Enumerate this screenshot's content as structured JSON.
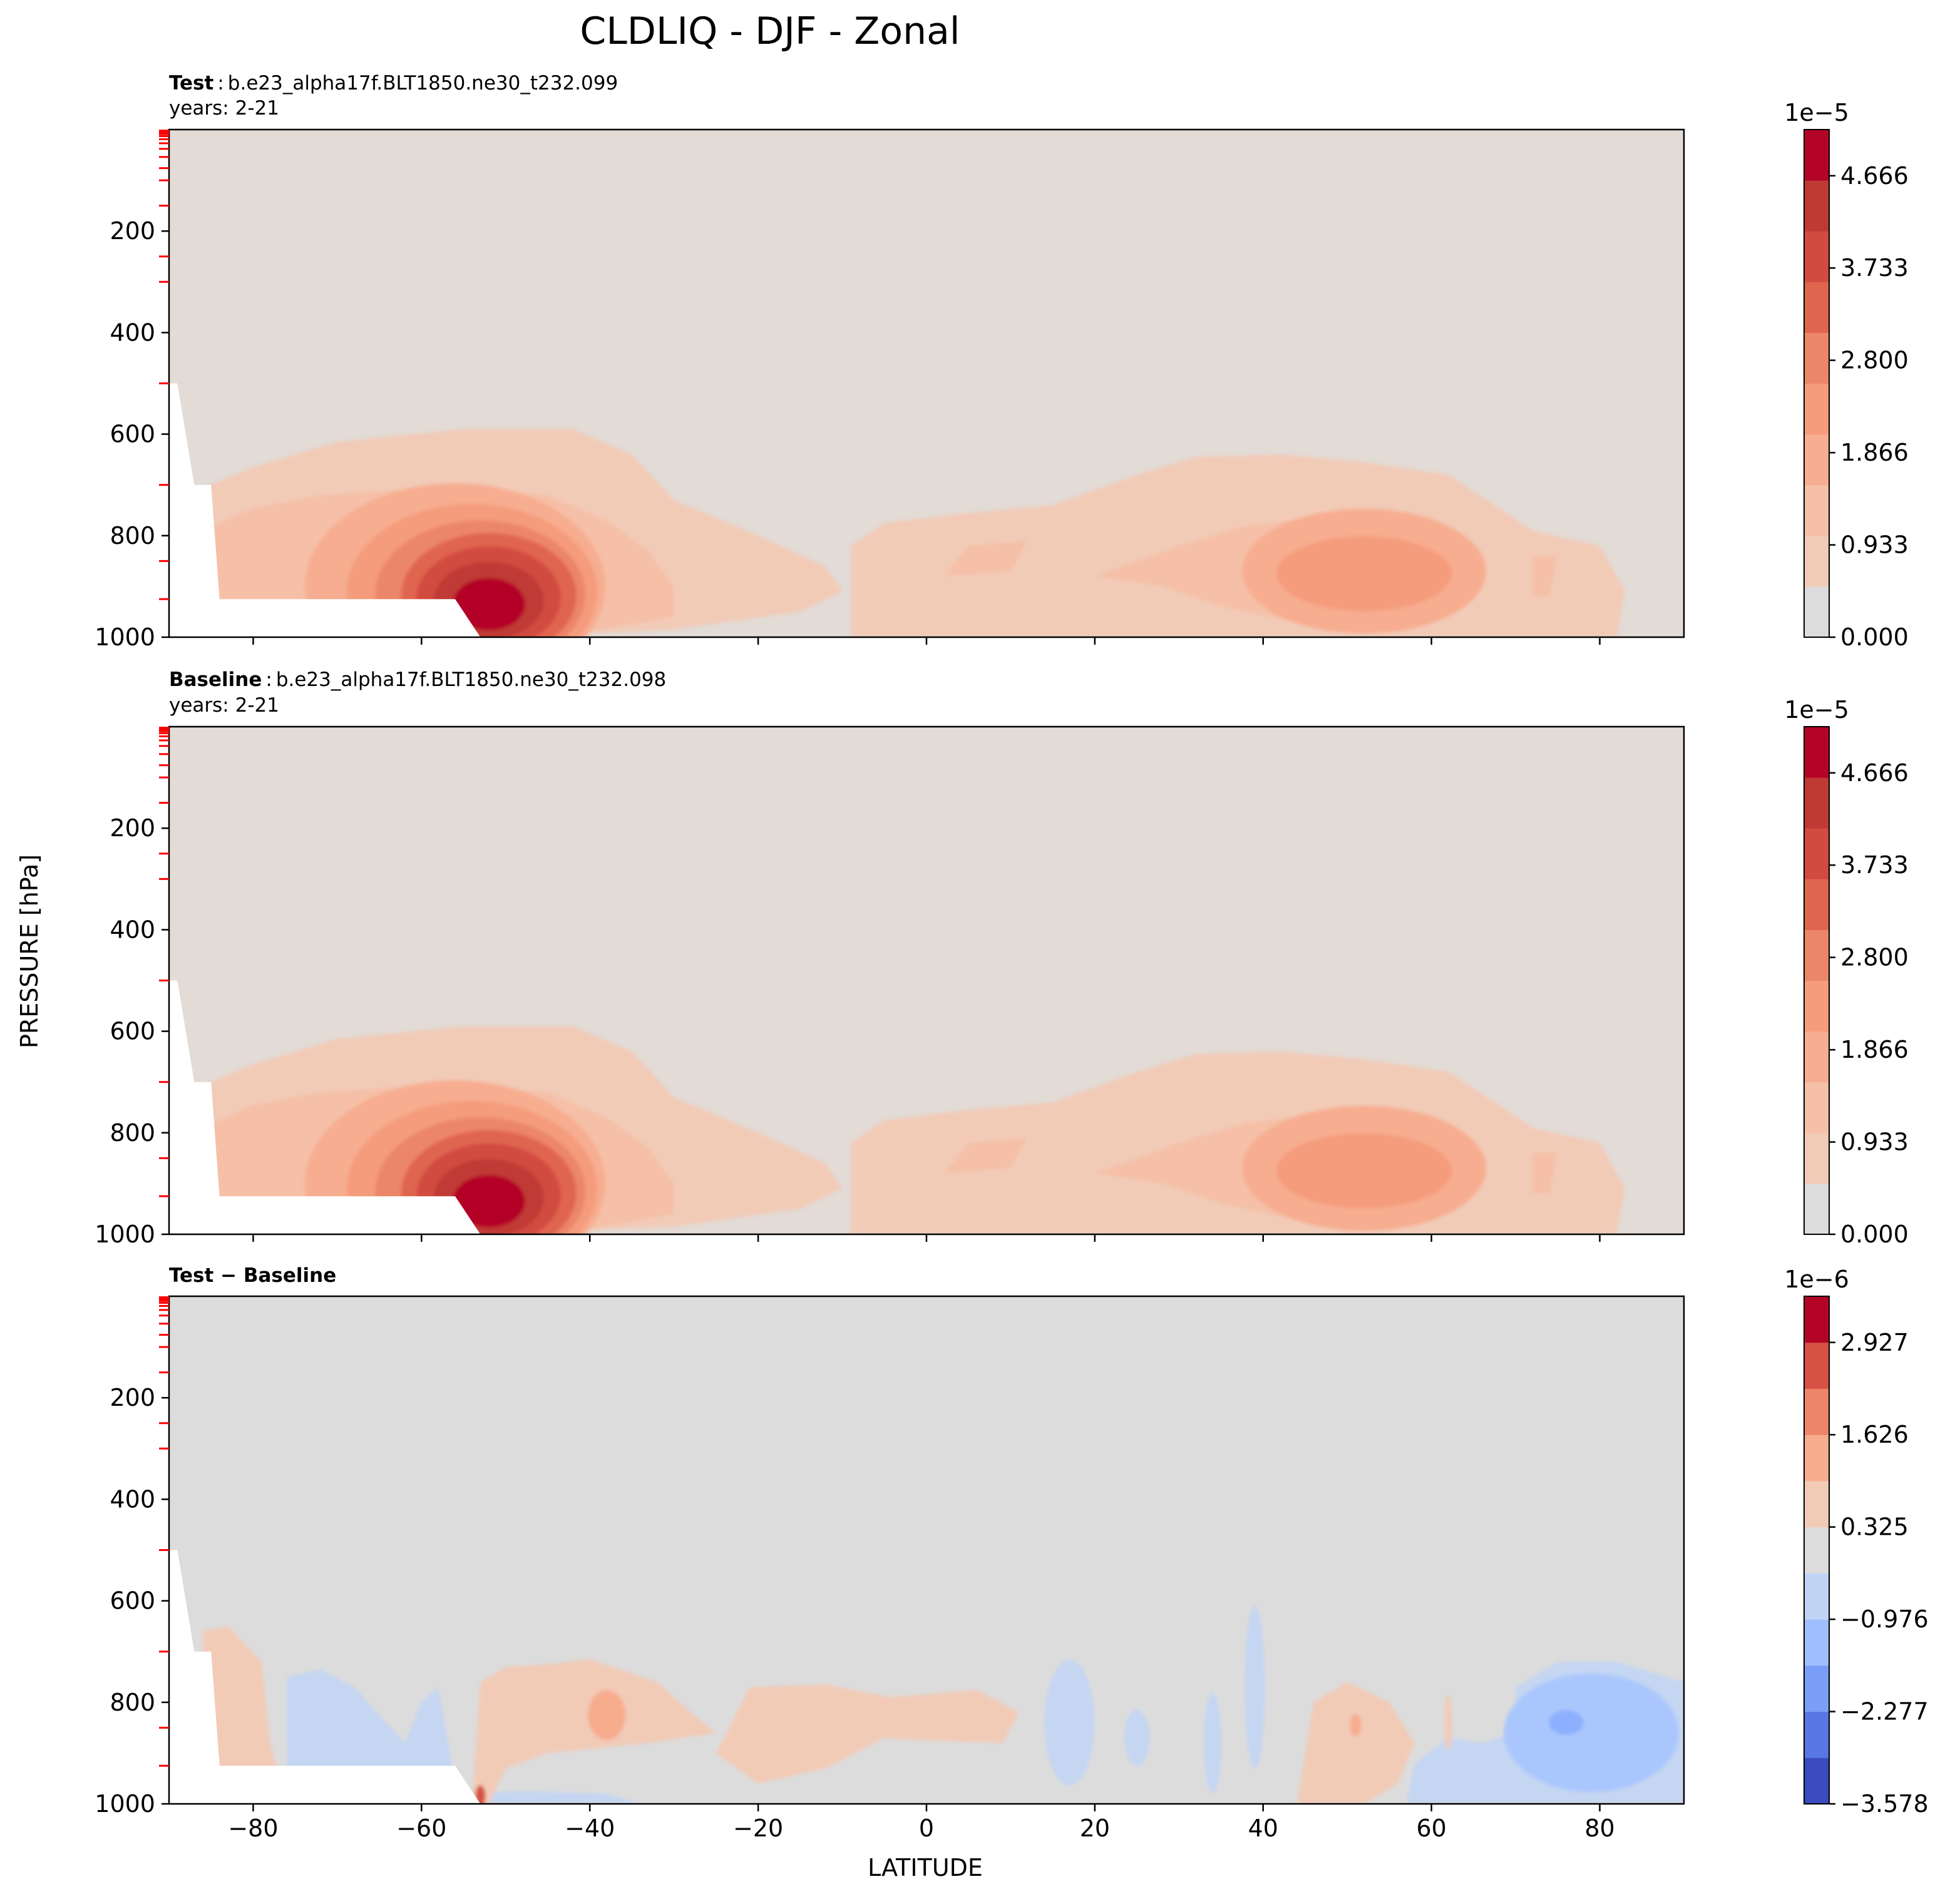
{
  "figure": {
    "title": "CLDLIQ - DJF - Zonal",
    "ylabel": "PRESSURE [hPa]",
    "xlabel": "LATITUDE"
  },
  "colors": {
    "panel_bg_main": "#e2dbd6",
    "panel_bg_diff": "#dcdcdc",
    "diff_blue_light": "#c5d6f2",
    "diff_blue_mid": "#aac7fd",
    "diff_blue_dark": "#8db0fe",
    "red_tick": "#ff0000",
    "main_colorbar": [
      "#dddcdc",
      "#f2cbb7",
      "#f5c0a7",
      "#f7ad90",
      "#f59c7d",
      "#ec8669",
      "#e0654f",
      "#d24b40",
      "#c03a34",
      "#b40426"
    ],
    "diff_colorbar": [
      "#3b4cc0",
      "#5977e3",
      "#7b9ff9",
      "#9ebeff",
      "#c0d4f5",
      "#dddcdc",
      "#f2cbb7",
      "#f7ac8e",
      "#ee8468",
      "#d65244",
      "#b40426"
    ]
  },
  "chart_data": [
    {
      "type": "contour",
      "panel_label": "Test",
      "title_sep": ":",
      "case_name": "b.e23_alpha17f.BLT1850.ne30_t232.099",
      "years": "years: 2-21",
      "xlim": [
        -90,
        90
      ],
      "ylim": [
        1000,
        0
      ],
      "yscale": "linear",
      "x_ticks": [
        "−80",
        "−60",
        "−40",
        "−20",
        "0",
        "20",
        "40",
        "60",
        "80"
      ],
      "y_ticks": [
        "200",
        "400",
        "600",
        "800",
        "1000"
      ],
      "x_tick_labels_shown": false,
      "colorbar": {
        "multiplier": "1e−5",
        "tick_labels": [
          "0.000",
          "0.933",
          "1.866",
          "2.800",
          "3.733",
          "4.666"
        ],
        "vmin": 0,
        "vmax": 5.133,
        "levels": 11
      },
      "maxima": [
        {
          "lat": -52,
          "p": 900,
          "value": 4.8e-05
        },
        {
          "lat": 50,
          "p": 860,
          "value": 2.6e-05
        }
      ]
    },
    {
      "type": "contour",
      "panel_label": "Baseline",
      "title_sep": ":",
      "case_name": "b.e23_alpha17f.BLT1850.ne30_t232.098",
      "years": "years: 2-21",
      "xlim": [
        -90,
        90
      ],
      "ylim": [
        1000,
        0
      ],
      "yscale": "linear",
      "x_ticks": [
        "−80",
        "−60",
        "−40",
        "−20",
        "0",
        "20",
        "40",
        "60",
        "80"
      ],
      "y_ticks": [
        "200",
        "400",
        "600",
        "800",
        "1000"
      ],
      "x_tick_labels_shown": false,
      "colorbar": {
        "multiplier": "1e−5",
        "tick_labels": [
          "0.000",
          "0.933",
          "1.866",
          "2.800",
          "3.733",
          "4.666"
        ],
        "vmin": 0,
        "vmax": 5.133,
        "levels": 11
      },
      "maxima": [
        {
          "lat": -52,
          "p": 910,
          "value": 4.8e-05
        },
        {
          "lat": 50,
          "p": 860,
          "value": 2.6e-05
        }
      ]
    },
    {
      "type": "contour",
      "panel_label": "Test − Baseline",
      "xlim": [
        -90,
        90
      ],
      "ylim": [
        1000,
        0
      ],
      "yscale": "linear",
      "x_ticks": [
        "−80",
        "−60",
        "−40",
        "−20",
        "0",
        "20",
        "40",
        "60",
        "80"
      ],
      "y_ticks": [
        "200",
        "400",
        "600",
        "800",
        "1000"
      ],
      "x_tick_labels_shown": true,
      "colorbar": {
        "multiplier": "1e−6",
        "tick_labels": [
          "−3.578",
          "−2.277",
          "−0.976",
          "0.325",
          "1.626",
          "2.927"
        ],
        "vmin": -3.578,
        "vmax": 3.578,
        "levels": 11
      }
    }
  ]
}
